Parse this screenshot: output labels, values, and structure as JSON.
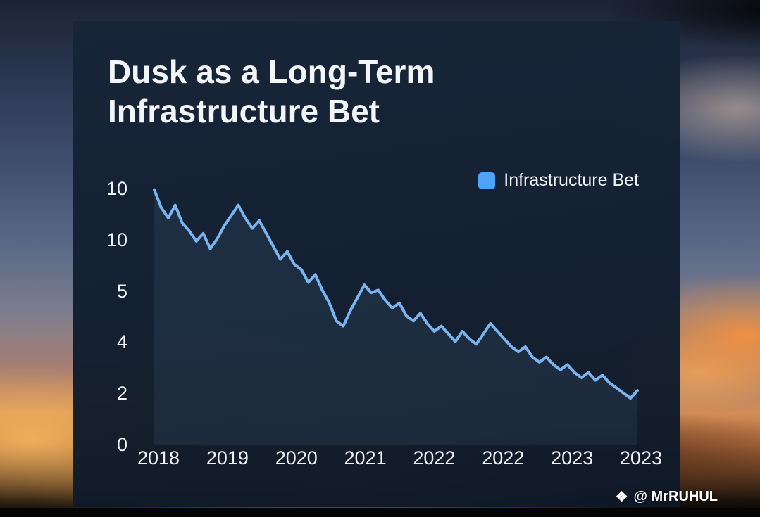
{
  "title": {
    "line1": "Dusk as a Long-Term",
    "line2": "Infrastructure Bet"
  },
  "legend": {
    "label": "Infrastructure Bet",
    "swatch_color": "#4da3f5"
  },
  "watermark": {
    "icon": "❖",
    "text": "@ MrRUHUL"
  },
  "colors": {
    "panel": "#14263a",
    "line": "#7ab4f0",
    "area_fill": "rgba(99,139,184,0.12)",
    "text": "#edf1f6"
  },
  "chart_data": {
    "type": "line",
    "title": "Dusk as a Long-Term Infrastructure Bet",
    "xlabel": "",
    "ylabel": "",
    "grid": false,
    "legend_position": "top-right",
    "ylim": [
      0,
      10
    ],
    "y_ticks": [
      "10",
      "10",
      "5",
      "4",
      "2",
      "0"
    ],
    "x_ticks": [
      "2018",
      "2019",
      "2020",
      "2021",
      "2022",
      "2022",
      "2023",
      "2023"
    ],
    "series": [
      {
        "name": "Infrastructure Bet",
        "color": "#7ab4f0",
        "values": [
          9.9,
          9.2,
          8.8,
          9.3,
          8.6,
          8.3,
          7.9,
          8.2,
          7.6,
          8.0,
          8.5,
          8.9,
          9.3,
          8.8,
          8.4,
          8.7,
          8.2,
          7.7,
          7.2,
          7.5,
          7.0,
          6.8,
          6.3,
          6.6,
          6.0,
          5.5,
          4.8,
          4.6,
          5.2,
          5.7,
          6.2,
          5.9,
          6.0,
          5.6,
          5.3,
          5.5,
          5.0,
          4.8,
          5.1,
          4.7,
          4.4,
          4.6,
          4.3,
          4.0,
          4.4,
          4.1,
          3.9,
          4.3,
          4.7,
          4.4,
          4.1,
          3.8,
          3.6,
          3.8,
          3.4,
          3.2,
          3.4,
          3.1,
          2.9,
          3.1,
          2.8,
          2.6,
          2.8,
          2.5,
          2.7,
          2.4,
          2.2,
          2.0,
          1.8,
          2.1
        ]
      }
    ]
  }
}
